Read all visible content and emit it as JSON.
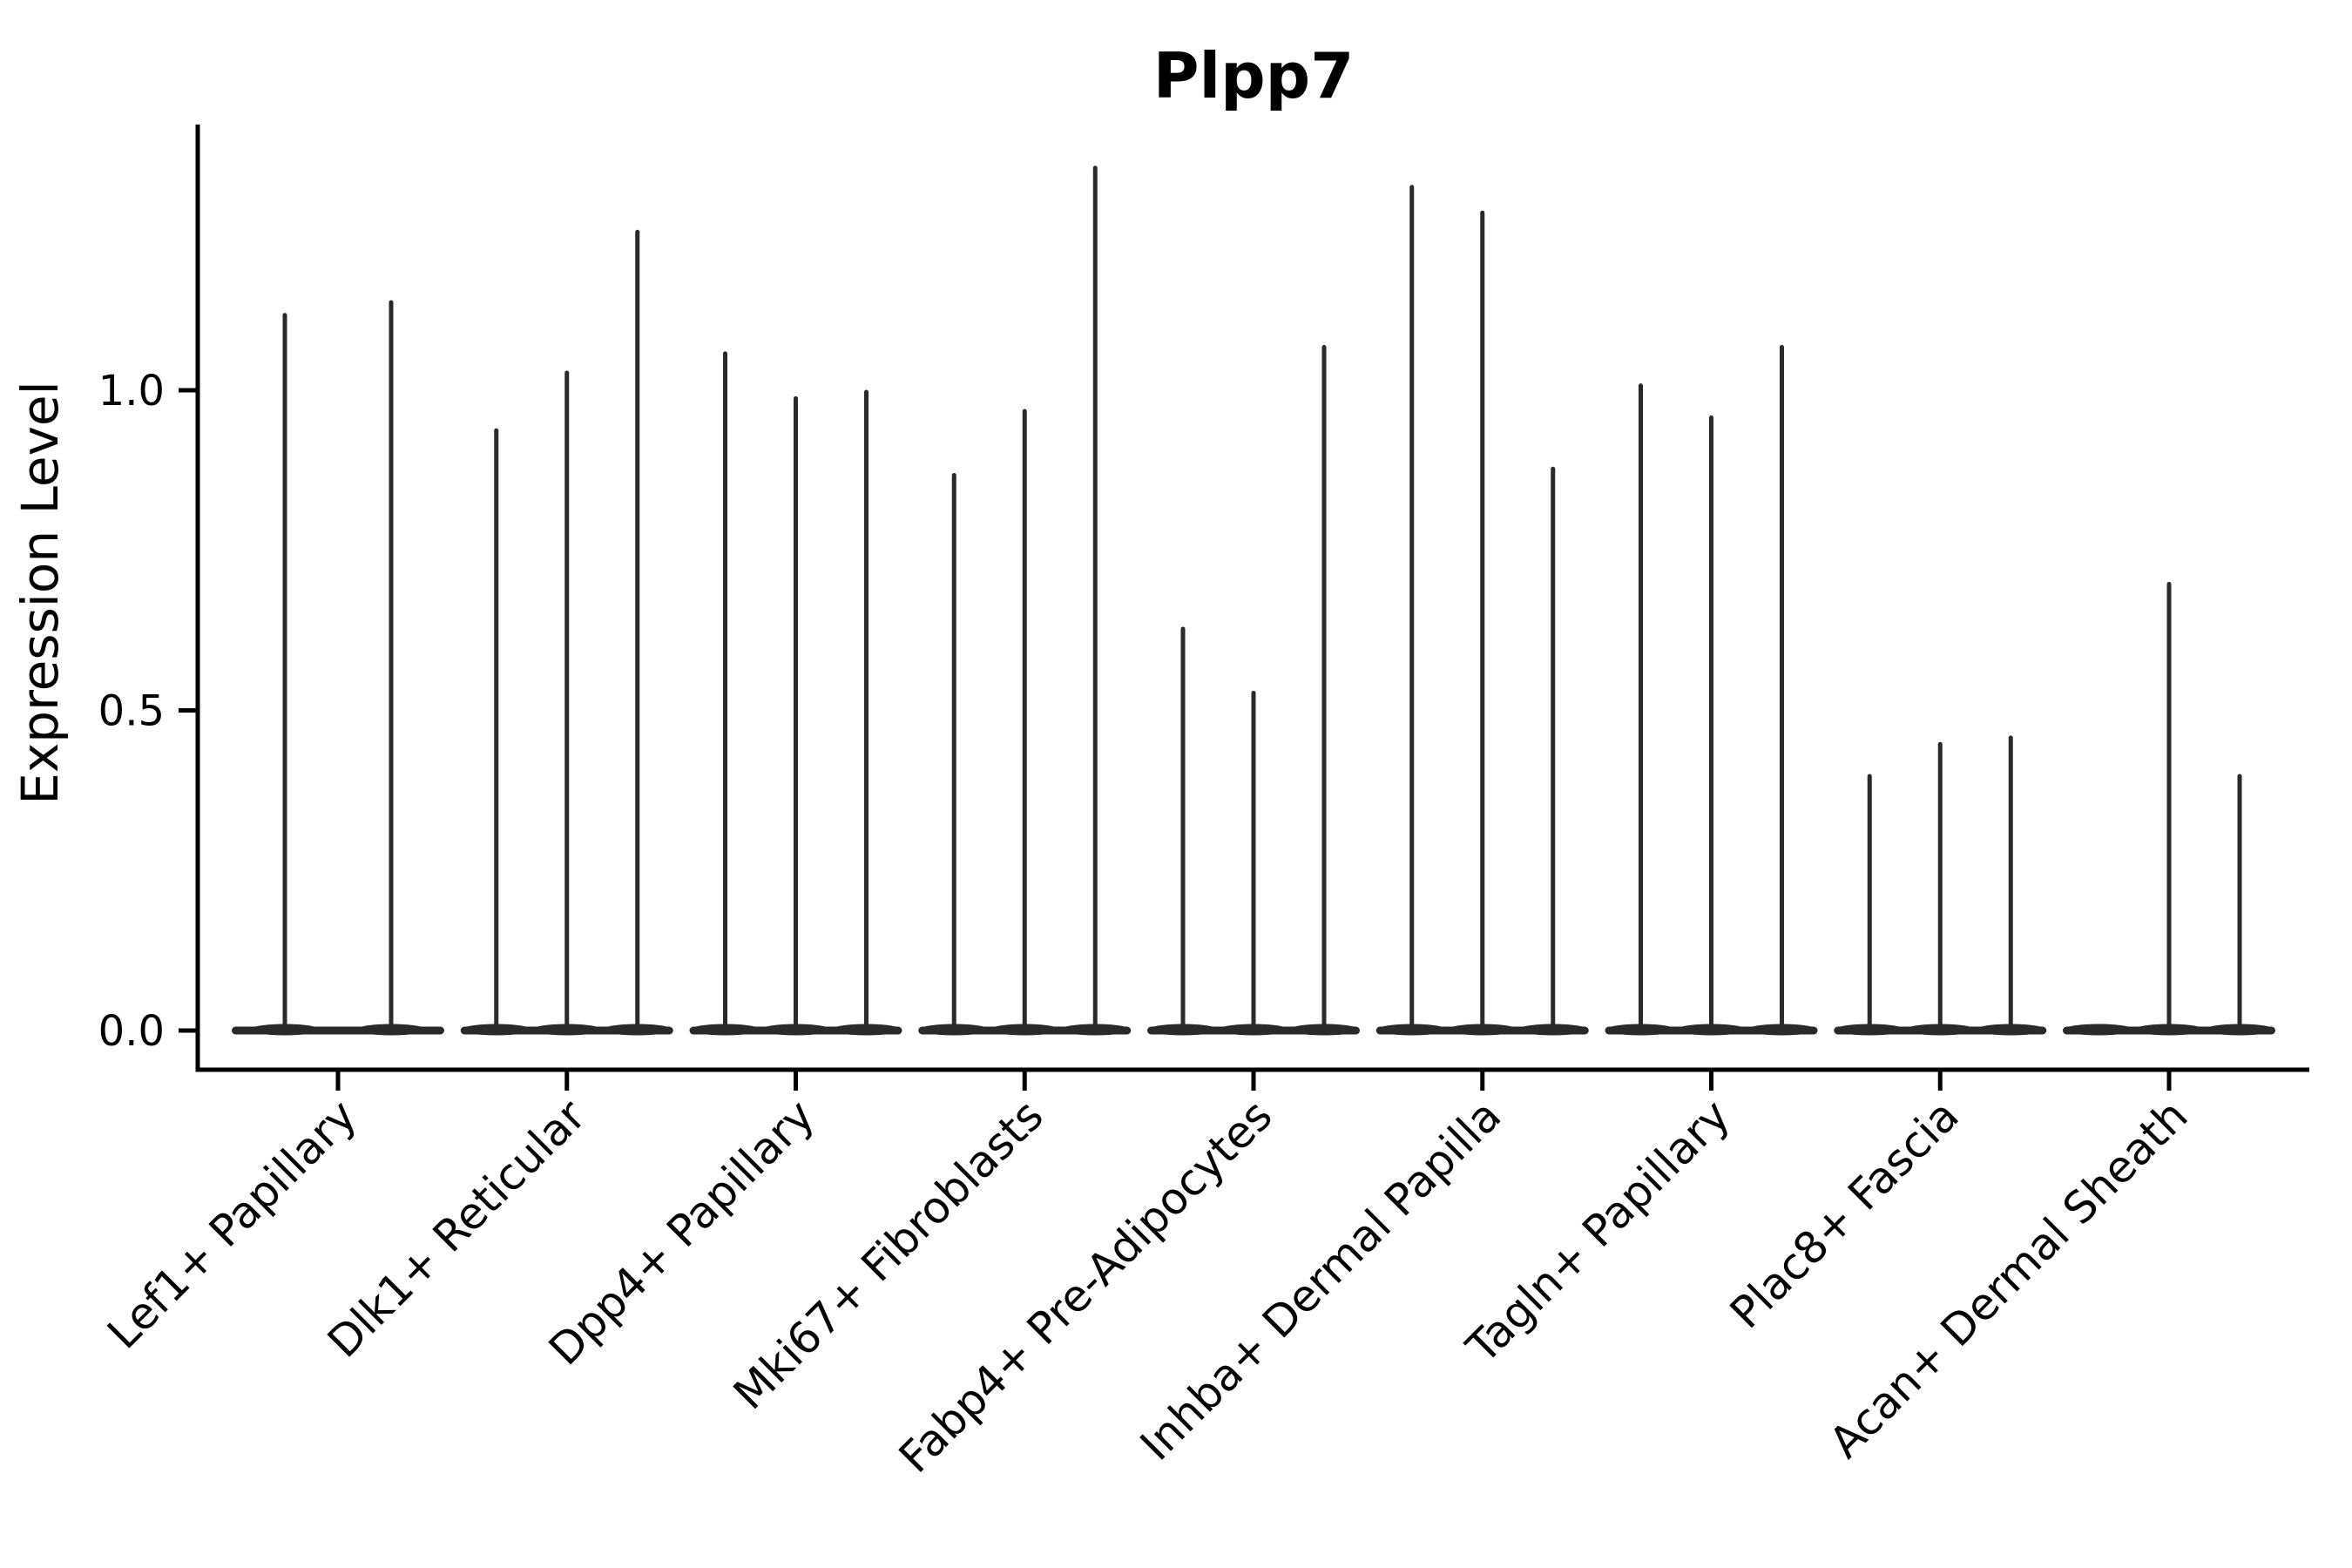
{
  "title": "Plpp7",
  "chart_data": {
    "type": "violin",
    "title": "Plpp7",
    "xlabel": "",
    "ylabel": "Expression Level",
    "ylim": [
      -0.06,
      1.41
    ],
    "grid": false,
    "legend": "none",
    "ytick_labels": [
      "0.0",
      "0.5",
      "1.0"
    ],
    "ytick_values": [
      0.0,
      0.5,
      1.0
    ],
    "description": "Violin plot of Plpp7 expression; each cluster on the x-axis contains 2-3 very thin violins (mostly zero expression with a narrow spike up to the peak value). A peak of 0 means a flat violin lying on the zero line.",
    "categories": [
      {
        "label": "Lef1+ Papillary",
        "violin_peaks": [
          1.12,
          1.14
        ]
      },
      {
        "label": "Dlk1+ Reticular",
        "violin_peaks": [
          0.94,
          1.03,
          1.25
        ]
      },
      {
        "label": "Dpp4+ Papillary",
        "violin_peaks": [
          1.06,
          0.99,
          1.0
        ]
      },
      {
        "label": "Mki67+ Fibroblasts",
        "violin_peaks": [
          0.87,
          0.97,
          1.35
        ]
      },
      {
        "label": "Fabp4+ Pre-Adipocytes",
        "violin_peaks": [
          0.63,
          0.53,
          1.07
        ]
      },
      {
        "label": "Inhba+ Dermal Papilla",
        "violin_peaks": [
          1.32,
          1.28,
          0.88
        ]
      },
      {
        "label": "Tagln+ Papillary",
        "violin_peaks": [
          1.01,
          0.96,
          1.07
        ]
      },
      {
        "label": "Plac8+ Fascia",
        "violin_peaks": [
          0.4,
          0.45,
          0.46
        ]
      },
      {
        "label": "Acan+ Dermal Sheath",
        "violin_peaks": [
          0.0,
          0.7,
          0.4
        ]
      }
    ]
  },
  "colors": {
    "background": "#ffffff",
    "violin": "#2a2a2a",
    "axis": "#000000",
    "text": "#000000"
  }
}
